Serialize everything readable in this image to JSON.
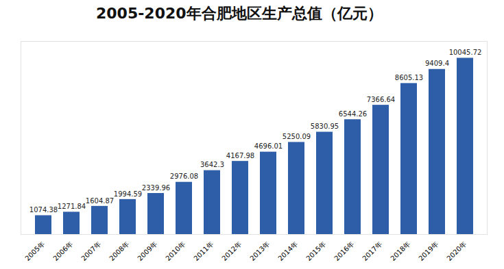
{
  "chart_data": {
    "type": "bar",
    "title": "2005-2020年合肥地区生产总值（亿元）",
    "categories": [
      "2005年",
      "2006年",
      "2007年",
      "2008年",
      "2009年",
      "2010年",
      "2011年",
      "2012年",
      "2013年",
      "2014年",
      "2015年",
      "2016年",
      "2017年",
      "2018年",
      "2019年",
      "2020年"
    ],
    "values": [
      1074.38,
      1271.84,
      1604.87,
      1994.59,
      2339.96,
      2976.08,
      3642.3,
      4167.98,
      4696.01,
      5250.09,
      5830.95,
      6544.26,
      7366.64,
      8605.13,
      9409.4,
      10045.72
    ],
    "color": "#2f5ea8",
    "ylim": [
      0,
      11000
    ],
    "grid": false,
    "data_labels": true,
    "tick_labels": "x"
  }
}
